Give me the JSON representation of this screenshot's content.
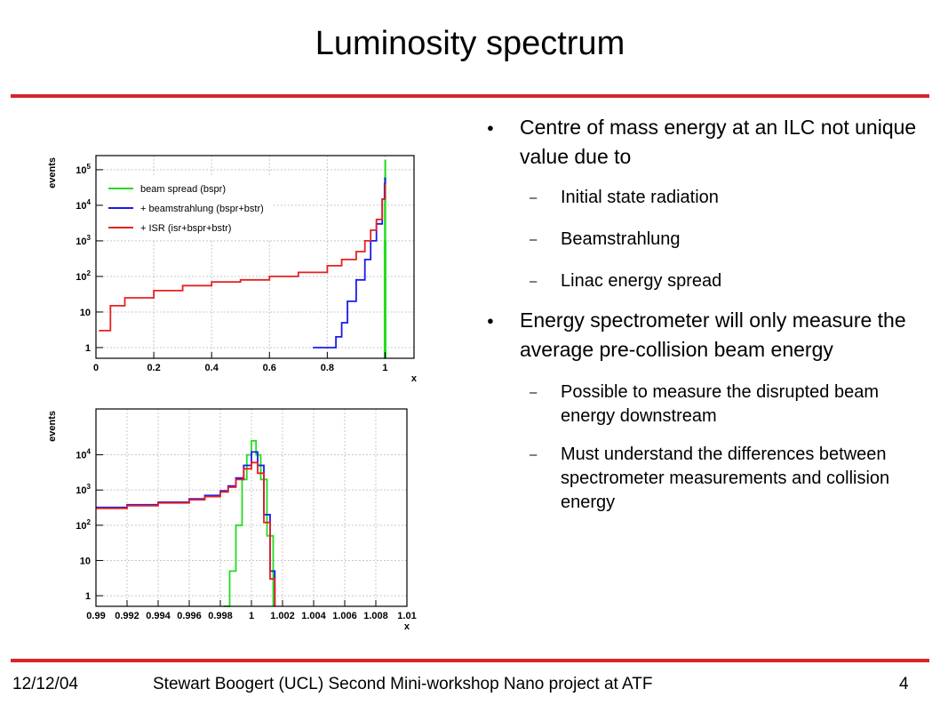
{
  "slide": {
    "title": "Luminosity spectrum",
    "footer_date": "12/12/04",
    "footer_center": "Stewart Boogert (UCL) Second Mini-workshop Nano project at ATF",
    "page_number": "4"
  },
  "bullets": [
    {
      "level": 1,
      "text": "Centre of mass energy at an ILC not unique value due to"
    },
    {
      "level": 2,
      "text": "Initial state radiation"
    },
    {
      "level": 2,
      "text": "Beamstrahlung"
    },
    {
      "level": 2,
      "text": "Linac energy spread"
    },
    {
      "level": 1,
      "text": "Energy spectrometer will only measure the average pre-collision beam energy"
    },
    {
      "level": 2,
      "text": "Possible to measure the disrupted beam energy downstream"
    },
    {
      "level": 2,
      "text": "Must understand the differences between spectrometer measurements and collision energy"
    }
  ],
  "colors": {
    "accent_rule": "#d8232a",
    "bspr": "#22dd22",
    "bstr": "#1a1aee",
    "isr": "#e62020",
    "grid": "#c8c8c8"
  },
  "chart_data": [
    {
      "type": "line",
      "xlabel": "x",
      "ylabel": "events",
      "xlim": [
        0,
        1.1
      ],
      "ylim": [
        0.5,
        250000
      ],
      "yscale": "log",
      "grid": true,
      "legend_position": "top-left",
      "x_ticks": [
        "0",
        "0.2",
        "0.4",
        "0.6",
        "0.8",
        "1"
      ],
      "y_ticks": [
        "1",
        "10",
        "10^2",
        "10^3",
        "10^4",
        "10^5"
      ],
      "series": [
        {
          "name": "beam spread (bspr)",
          "color": "#22dd22",
          "x": [
            0.997,
            0.998,
            0.999,
            1.0,
            1.001,
            1.002
          ],
          "y": [
            0.5,
            1000,
            60000,
            180000,
            1000,
            0.5
          ]
        },
        {
          "name": "+ beamstrahlung (bspr+bstr)",
          "color": "#1a1aee",
          "x": [
            0.75,
            0.77,
            0.8,
            0.83,
            0.85,
            0.87,
            0.9,
            0.93,
            0.95,
            0.97,
            0.99,
            0.998,
            1.0
          ],
          "y": [
            1,
            1,
            1,
            2,
            5,
            20,
            80,
            300,
            1000,
            3000,
            15000,
            40000,
            60000
          ]
        },
        {
          "name": "+ ISR (isr+bspr+bstr)",
          "color": "#e62020",
          "x": [
            0.01,
            0.05,
            0.1,
            0.2,
            0.3,
            0.4,
            0.5,
            0.6,
            0.7,
            0.8,
            0.85,
            0.9,
            0.93,
            0.95,
            0.97,
            0.99,
            1.0
          ],
          "y": [
            3,
            15,
            25,
            40,
            55,
            70,
            80,
            100,
            130,
            200,
            300,
            500,
            1000,
            2000,
            4000,
            15000,
            40000
          ]
        }
      ]
    },
    {
      "type": "line",
      "xlabel": "x",
      "ylabel": "events",
      "xlim": [
        0.99,
        1.01
      ],
      "ylim": [
        0.5,
        200000
      ],
      "yscale": "log",
      "grid": true,
      "x_ticks": [
        "0.99",
        "0.992",
        "0.994",
        "0.996",
        "0.998",
        "1",
        "1.002",
        "1.004",
        "1.006",
        "1.008",
        "1.01"
      ],
      "y_ticks": [
        "1",
        "10",
        "10^2",
        "10^3",
        "10^4"
      ],
      "series": [
        {
          "color": "#22dd22",
          "x": [
            0.9982,
            0.9986,
            0.999,
            0.9994,
            0.9997,
            1.0,
            1.0003,
            1.0006,
            1.001,
            1.0014
          ],
          "y": [
            0.5,
            5,
            100,
            2000,
            10000,
            25000,
            10000,
            2000,
            50,
            0.5
          ]
        },
        {
          "color": "#1a1aee",
          "x": [
            0.99,
            0.992,
            0.994,
            0.996,
            0.997,
            0.998,
            0.9985,
            0.999,
            0.9995,
            1.0,
            1.0004,
            1.0008,
            1.0012,
            1.0015
          ],
          "y": [
            320,
            380,
            450,
            560,
            700,
            950,
            1300,
            2200,
            5000,
            12000,
            5000,
            200,
            5,
            0.5
          ]
        },
        {
          "color": "#e62020",
          "x": [
            0.99,
            0.992,
            0.994,
            0.996,
            0.997,
            0.998,
            0.9985,
            0.999,
            0.9995,
            1.0,
            1.0004,
            1.0008,
            1.0012,
            1.0015
          ],
          "y": [
            300,
            360,
            430,
            530,
            650,
            880,
            1200,
            2000,
            4000,
            6000,
            3000,
            120,
            3,
            0.5
          ]
        }
      ]
    }
  ]
}
